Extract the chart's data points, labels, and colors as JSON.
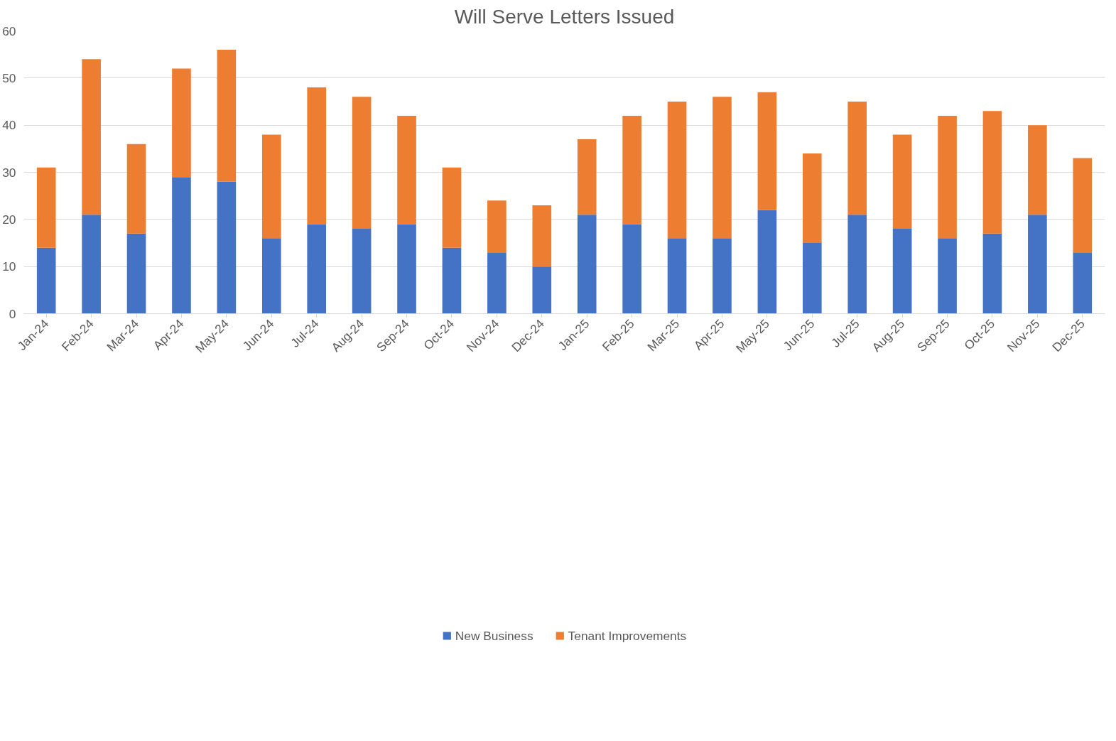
{
  "chart_data": {
    "type": "bar",
    "title": "Will Serve Letters Issued",
    "stacked": true,
    "categories": [
      "Jan-24",
      "Feb-24",
      "Mar-24",
      "Apr-24",
      "May-24",
      "Jun-24",
      "Jul-24",
      "Aug-24",
      "Sep-24",
      "Oct-24",
      "Nov-24",
      "Dec-24",
      "Jan-25",
      "Feb-25",
      "Mar-25",
      "Apr-25",
      "May-25",
      "Jun-25",
      "Jul-25",
      "Aug-25",
      "Sep-25",
      "Oct-25",
      "Nov-25",
      "Dec-25"
    ],
    "series": [
      {
        "name": "New Business",
        "color": "#4472c4",
        "values": [
          14,
          21,
          17,
          29,
          28,
          16,
          19,
          18,
          19,
          14,
          13,
          10,
          21,
          19,
          16,
          16,
          22,
          15,
          21,
          18,
          16,
          17,
          21,
          13
        ]
      },
      {
        "name": "Tenant Improvements",
        "color": "#ed7d31",
        "values": [
          17,
          33,
          19,
          23,
          28,
          22,
          29,
          28,
          23,
          17,
          11,
          13,
          16,
          23,
          29,
          30,
          25,
          19,
          24,
          20,
          26,
          26,
          19,
          20
        ]
      }
    ],
    "ylim": [
      0,
      60
    ],
    "yticks": [
      0,
      10,
      20,
      30,
      40,
      50,
      60
    ],
    "grid": "y",
    "legend": "bottom"
  }
}
